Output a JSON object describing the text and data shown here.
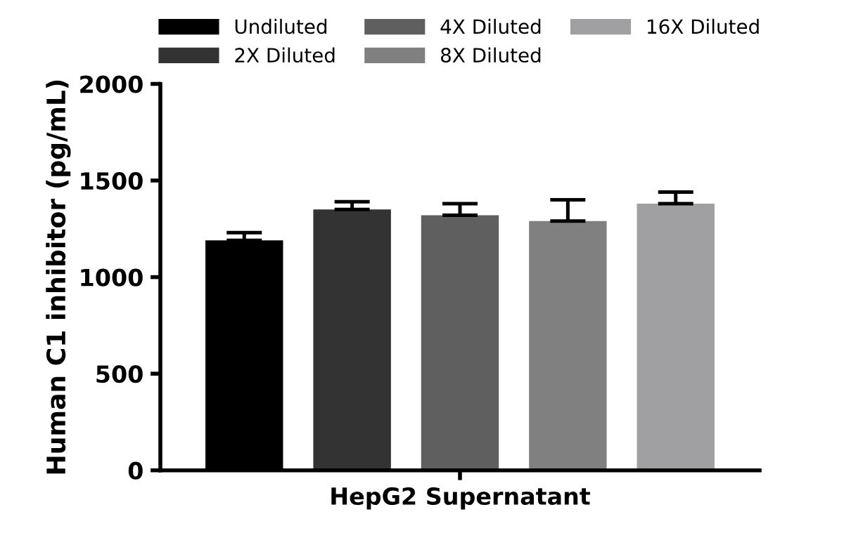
{
  "chart_data": {
    "type": "bar",
    "ylabel": "Human C1 inhibitor (pg/mL)",
    "categories": [
      "HepG2 Supernatant"
    ],
    "series": [
      {
        "name": "Undiluted",
        "color": "#000000",
        "values": [
          1190
        ],
        "errors": [
          [
            1190,
            1230
          ]
        ]
      },
      {
        "name": "2X Diluted",
        "color": "#333333",
        "values": [
          1350
        ],
        "errors": [
          [
            1350,
            1390
          ]
        ]
      },
      {
        "name": "4X Diluted",
        "color": "#5f5f5f",
        "values": [
          1320
        ],
        "errors": [
          [
            1320,
            1380
          ]
        ]
      },
      {
        "name": "8X Diluted",
        "color": "#808080",
        "values": [
          1290
        ],
        "errors": [
          [
            1290,
            1400
          ]
        ]
      },
      {
        "name": "16X Diluted",
        "color": "#a0a0a2",
        "values": [
          1380
        ],
        "errors": [
          [
            1380,
            1440
          ]
        ]
      }
    ],
    "ylim": [
      0,
      2000
    ],
    "yticks": [
      0,
      500,
      1000,
      1500,
      2000
    ],
    "grid": false,
    "legend": "top"
  }
}
